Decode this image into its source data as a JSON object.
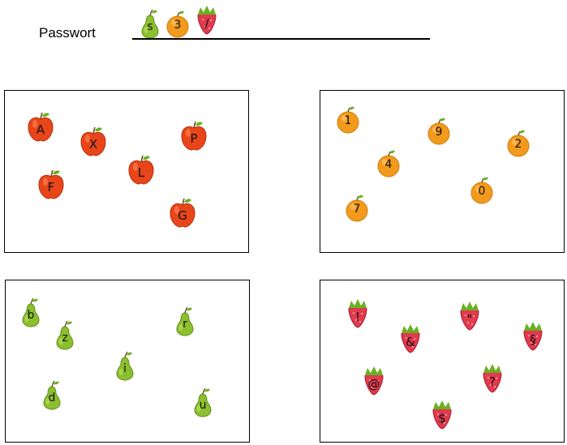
{
  "password": {
    "label": "Passwort",
    "entered": [
      {
        "char": "s",
        "fruit": "pear"
      },
      {
        "char": "3",
        "fruit": "orange"
      },
      {
        "char": "/",
        "fruit": "strawberry"
      }
    ]
  },
  "fruit_colors": {
    "apple": "#e8461a",
    "orange": "#f29a1c",
    "pear": "#8cbf2e",
    "strawberry": "#e23a4e",
    "leaf": "#6ab023"
  },
  "panels": [
    {
      "id": "apples",
      "fruit": "apple",
      "keys": [
        "A",
        "X",
        "P",
        "L",
        "F",
        "G"
      ]
    },
    {
      "id": "oranges",
      "fruit": "orange",
      "keys": [
        "1",
        "9",
        "2",
        "4",
        "0",
        "7"
      ]
    },
    {
      "id": "pears",
      "fruit": "pear",
      "keys": [
        "b",
        "r",
        "z",
        "i",
        "d",
        "u"
      ]
    },
    {
      "id": "strawberries",
      "fruit": "strawberry",
      "keys": [
        "!",
        "\"",
        "&",
        "§",
        "@",
        "?",
        "$"
      ]
    }
  ]
}
